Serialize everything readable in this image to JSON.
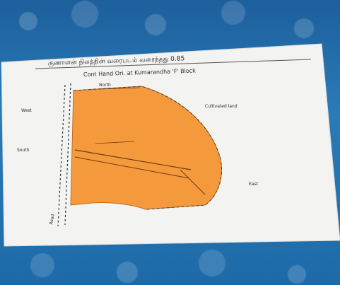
{
  "title_line": "குணாளன் நிலத்தின் வரைபடம் வரைந்தது 0.85",
  "subtitle_line": "Cont Hand Ori. at Kumarandha 'F' Block",
  "labels": {
    "north_edge": "North",
    "west_top": "West",
    "west_mid": "South",
    "east_note": "Cultivated land",
    "east_right": "East",
    "bottom_left": "Road"
  },
  "colors": {
    "plot_fill": "#f49a3c",
    "paper": "#f3f4f1",
    "cloth": "#2a7bb8"
  }
}
